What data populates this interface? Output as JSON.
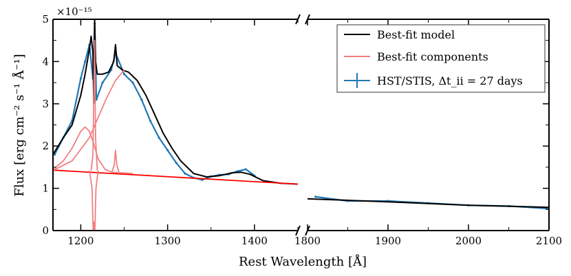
{
  "chart_data": {
    "type": "line",
    "ylabel": "Flux [erg cm⁻² s⁻¹ Å⁻¹]",
    "xlabel": "Rest Wavelength [Å]",
    "y_multiplier": "×10⁻¹⁵",
    "ylim": [
      0,
      5
    ],
    "yticks": [
      "0",
      "1",
      "2",
      "3",
      "4",
      "5"
    ],
    "panels": [
      {
        "xlim": [
          1168,
          1450
        ],
        "xticks": [
          "1200",
          "1300",
          "1400"
        ]
      },
      {
        "xlim": [
          1800,
          2100
        ],
        "xticks": [
          "1800",
          "1900",
          "2000",
          "2100"
        ]
      }
    ],
    "legend_position": "upper right",
    "legend": [
      {
        "label": "Best-fit model",
        "color": "#000000"
      },
      {
        "label": "Best-fit components",
        "color": "#f08080"
      },
      {
        "label": "HST/STIS, Δt_ii = 27 days",
        "color": "#1f77b4"
      }
    ],
    "series": [
      {
        "name": "HST/STIS, Δt_ii = 27 days",
        "color": "#1f77b4",
        "x": [
          1170,
          1180,
          1190,
          1200,
          1205,
          1210,
          1214,
          1216,
          1218,
          1225,
          1235,
          1240,
          1250,
          1260,
          1270,
          1280,
          1290,
          1300,
          1310,
          1320,
          1330,
          1340,
          1350,
          1360,
          1370,
          1380,
          1390,
          1400,
          1810,
          1850,
          1900,
          1950,
          2000,
          2050,
          2100
        ],
        "y": [
          1.8,
          2.2,
          2.6,
          3.6,
          4.0,
          4.4,
          3.6,
          4.9,
          3.1,
          3.5,
          3.8,
          4.2,
          3.7,
          3.5,
          3.1,
          2.6,
          2.2,
          1.9,
          1.6,
          1.35,
          1.25,
          1.2,
          1.28,
          1.32,
          1.33,
          1.4,
          1.45,
          1.3,
          0.8,
          0.7,
          0.7,
          0.65,
          0.6,
          0.58,
          0.52
        ]
      },
      {
        "name": "Best-fit model",
        "color": "#000000",
        "x": [
          1168,
          1180,
          1190,
          1200,
          1205,
          1210,
          1212,
          1214,
          1215,
          1216,
          1217,
          1219,
          1225,
          1232,
          1238,
          1240,
          1242,
          1248,
          1255,
          1265,
          1275,
          1285,
          1295,
          1305,
          1315,
          1330,
          1345,
          1360,
          1375,
          1385,
          1395,
          1410,
          1430,
          1450,
          1800,
          1900,
          2000,
          2100
        ],
        "y": [
          1.8,
          2.2,
          2.5,
          3.2,
          3.7,
          4.3,
          4.6,
          4.2,
          3.0,
          5.0,
          4.0,
          3.7,
          3.7,
          3.75,
          4.0,
          4.4,
          3.9,
          3.8,
          3.75,
          3.55,
          3.2,
          2.75,
          2.3,
          1.95,
          1.65,
          1.35,
          1.27,
          1.3,
          1.37,
          1.38,
          1.33,
          1.18,
          1.12,
          1.1,
          0.75,
          0.68,
          0.6,
          0.55
        ]
      },
      {
        "name": "Best-fit components: continuum",
        "color": "#ff0000",
        "x": [
          1168,
          1450
        ],
        "y": [
          1.43,
          1.1
        ]
      },
      {
        "name": "Best-fit components: broad Lyα",
        "color": "#f08080",
        "x": [
          1168,
          1180,
          1190,
          1200,
          1205,
          1210,
          1215,
          1220,
          1228,
          1236,
          1245,
          1260
        ],
        "y": [
          1.44,
          1.65,
          1.95,
          2.35,
          2.45,
          2.35,
          2.05,
          1.7,
          1.45,
          1.38,
          1.37,
          1.35
        ]
      },
      {
        "name": "Best-fit components: rising broad",
        "color": "#f08080",
        "x": [
          1168,
          1190,
          1210,
          1230,
          1240,
          1250
        ],
        "y": [
          1.42,
          1.65,
          2.2,
          3.15,
          3.55,
          3.8
        ]
      },
      {
        "name": "Best-fit components: narrow emission",
        "color": "#f08080",
        "x": [
          1212,
          1214,
          1215.3,
          1216,
          1217,
          1219
        ],
        "y": [
          1.42,
          1.8,
          3.6,
          4.5,
          2.2,
          1.42
        ]
      },
      {
        "name": "Best-fit components: absorption",
        "color": "#f08080",
        "x": [
          1210,
          1213,
          1214.5,
          1215.2,
          1216,
          1217.5,
          1220
        ],
        "y": [
          1.42,
          1.0,
          -0.2,
          0.2,
          -0.2,
          1.0,
          1.42
        ]
      },
      {
        "name": "Best-fit components: narrow 1240",
        "color": "#f08080",
        "x": [
          1236,
          1238.5,
          1240,
          1241.5,
          1244
        ],
        "y": [
          1.39,
          1.55,
          1.9,
          1.55,
          1.39
        ]
      }
    ]
  }
}
